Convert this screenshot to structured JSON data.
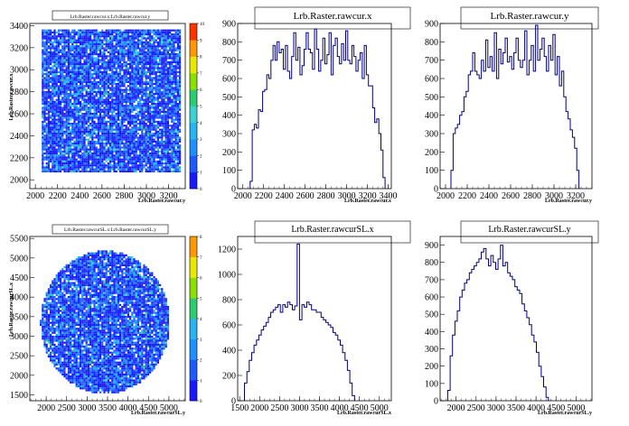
{
  "chart_data": [
    {
      "type": "heatmap",
      "title": "Lrb.Raster.rawcur.x:Lrb.Raster.rawcur.y",
      "xlabel": "Lrb.Raster.rawcur.y",
      "ylabel": "Lrb.Raster.rawcur.x",
      "xlim": [
        1950,
        3350
      ],
      "ylim": [
        1920,
        3420
      ],
      "xticks": [
        "2000",
        "2200",
        "2400",
        "2600",
        "2800",
        "3000",
        "3200"
      ],
      "yticks": [
        "2000",
        "2200",
        "2400",
        "2600",
        "2800",
        "3000",
        "3200",
        "3400"
      ],
      "zscale": [
        "0",
        "1",
        "2",
        "3",
        "4",
        "5",
        "6",
        "7",
        "8",
        "9",
        "10"
      ],
      "region": {
        "shape": "rect",
        "x": [
          2050,
          3300
        ],
        "y": [
          2080,
          3380
        ]
      }
    },
    {
      "type": "bar",
      "title": "Lrb.Raster.rawcur.x",
      "xlabel": "Lrb.Raster.rawcur.x",
      "xlim": [
        1950,
        3430
      ],
      "ylim": [
        0,
        900
      ],
      "xticks": [
        "2000",
        "2200",
        "2400",
        "2600",
        "2800",
        "3000",
        "3200",
        "3400"
      ],
      "yticks": [
        "0",
        "100",
        "200",
        "300",
        "400",
        "500",
        "600",
        "700",
        "800",
        "900"
      ],
      "bin_start": 2070,
      "bin_width": 20,
      "values": [
        40,
        320,
        350,
        330,
        430,
        420,
        530,
        540,
        620,
        600,
        700,
        780,
        700,
        800,
        740,
        760,
        650,
        780,
        640,
        600,
        720,
        850,
        700,
        770,
        620,
        670,
        760,
        850,
        760,
        740,
        650,
        870,
        760,
        640,
        700,
        820,
        680,
        730,
        850,
        620,
        780,
        820,
        720,
        680,
        790,
        700,
        860,
        700,
        680,
        780,
        720,
        640,
        700,
        740,
        600,
        780,
        620,
        560,
        560,
        440,
        360,
        380,
        300,
        210,
        60
      ]
    },
    {
      "type": "bar",
      "title": "Lrb.Raster.rawcur.y",
      "xlabel": "Lrb.Raster.rawcur.y",
      "xlim": [
        1950,
        3350
      ],
      "ylim": [
        0,
        900
      ],
      "xticks": [
        "2000",
        "2200",
        "2400",
        "2600",
        "2800",
        "3000",
        "3200"
      ],
      "yticks": [
        "0",
        "100",
        "200",
        "300",
        "400",
        "500",
        "600",
        "700",
        "800",
        "900"
      ],
      "bin_start": 2050,
      "bin_width": 20,
      "values": [
        100,
        300,
        330,
        350,
        400,
        420,
        500,
        530,
        620,
        640,
        740,
        640,
        620,
        600,
        700,
        640,
        810,
        660,
        720,
        640,
        850,
        600,
        760,
        680,
        740,
        820,
        690,
        720,
        650,
        740,
        820,
        700,
        660,
        700,
        860,
        620,
        700,
        780,
        640,
        890,
        700,
        760,
        820,
        720,
        640,
        780,
        700,
        840,
        620,
        720,
        560,
        640,
        500,
        420,
        380,
        320,
        280,
        220,
        100
      ]
    },
    {
      "type": "heatmap",
      "title": "Lrb.Raster.rawcurSL.x:Lrb.Raster.rawcurSL.y",
      "xlabel": "Lrb.Raster.rawcurSL.y",
      "ylabel": "Lrb.Raster.rawcurSL.x",
      "xlim": [
        1600,
        5400
      ],
      "ylim": [
        1350,
        5550
      ],
      "xticks": [
        "2000",
        "2500",
        "3000",
        "3500",
        "4000",
        "4500",
        "5000"
      ],
      "yticks": [
        "1500",
        "2000",
        "2500",
        "3000",
        "3500",
        "4000",
        "4500",
        "5000",
        "5500"
      ],
      "zscale": [
        "0",
        "1",
        "2",
        "3",
        "4",
        "5",
        "6",
        "7",
        "8"
      ],
      "region": {
        "shape": "circle",
        "center": [
          3420,
          3380
        ],
        "radius": [
          1580,
          1830
        ]
      }
    },
    {
      "type": "bar",
      "title": "Lrb.Raster.rawcurSL.x",
      "xlabel": "Lrb.Raster.rawcurSL.x",
      "xlim": [
        1450,
        5300
      ],
      "ylim": [
        0,
        1300
      ],
      "xticks": [
        "1500",
        "2000",
        "2500",
        "3000",
        "3500",
        "4000",
        "4500",
        "5000"
      ],
      "yticks": [
        "0",
        "200",
        "400",
        "600",
        "800",
        "1000",
        "1200"
      ],
      "bin_start": 1620,
      "bin_width": 60,
      "values": [
        140,
        230,
        320,
        380,
        440,
        480,
        520,
        560,
        590,
        620,
        660,
        700,
        720,
        740,
        760,
        700,
        760,
        740,
        780,
        760,
        720,
        750,
        1240,
        640,
        760,
        740,
        780,
        760,
        720,
        720,
        700,
        700,
        660,
        640,
        620,
        600,
        580,
        540,
        520,
        480,
        440,
        380,
        320,
        240,
        140,
        40
      ]
    },
    {
      "type": "bar",
      "title": "Lrb.Raster.rawcurSL.y",
      "xlabel": "Lrb.Raster.rawcurSL.y",
      "xlim": [
        1600,
        5400
      ],
      "ylim": [
        0,
        950
      ],
      "xticks": [
        "2000",
        "2500",
        "3000",
        "3500",
        "4000",
        "4500",
        "5000"
      ],
      "yticks": [
        "0",
        "100",
        "200",
        "300",
        "400",
        "500",
        "600",
        "700",
        "800",
        "900"
      ],
      "bin_start": 1790,
      "bin_width": 60,
      "values": [
        60,
        260,
        380,
        460,
        520,
        600,
        640,
        680,
        700,
        740,
        760,
        780,
        800,
        820,
        860,
        880,
        820,
        780,
        840,
        800,
        760,
        820,
        900,
        780,
        800,
        740,
        720,
        700,
        660,
        640,
        620,
        560,
        520,
        480,
        440,
        380,
        340,
        280,
        200,
        140,
        80,
        20
      ]
    }
  ]
}
